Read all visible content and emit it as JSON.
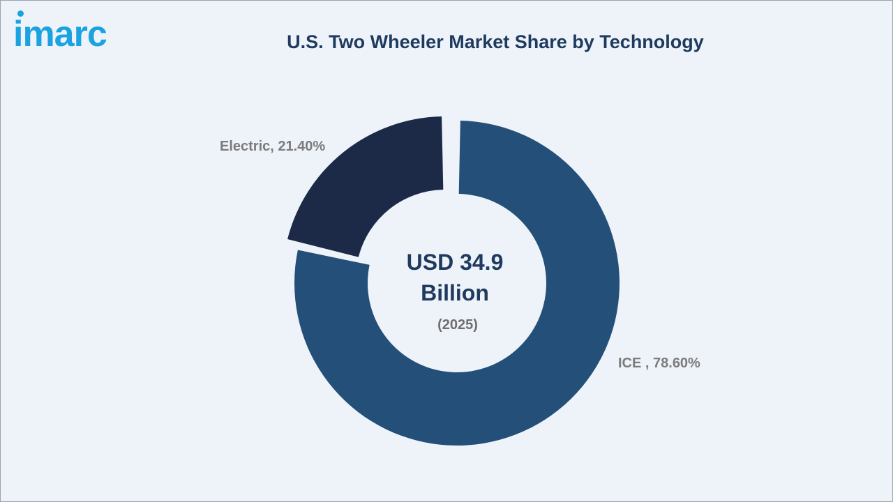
{
  "brand": {
    "logo_text": "imarc",
    "color": "#1aa3e0"
  },
  "chart_data": {
    "type": "pie",
    "title": "U.S. Two Wheeler Market Share by Technology",
    "categories": [
      "ICE",
      "Electric"
    ],
    "values": [
      78.6,
      21.4
    ],
    "unit": "%",
    "data_labels": [
      "ICE , 78.60%",
      "Electric, 21.40%"
    ],
    "colors": [
      "#234f79",
      "#1c2a48"
    ],
    "center_label": {
      "line1": "USD 34.9",
      "line2": "Billion",
      "line3": "(2025)"
    }
  }
}
